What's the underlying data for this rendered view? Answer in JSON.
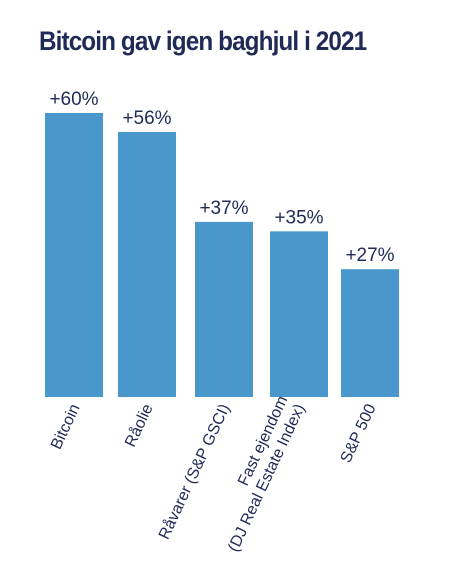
{
  "chart_data": {
    "type": "bar",
    "title": "Bitcoin gav igen baghjul i 2021",
    "categories": [
      [
        "Bitcoin"
      ],
      [
        "Råolie"
      ],
      [
        "Råvarer (S&P GSCI)"
      ],
      [
        "Fast ejendom",
        "(DJ Real Estate Index)"
      ],
      [
        "S&P 500"
      ]
    ],
    "values": [
      60,
      56,
      37,
      35,
      27
    ],
    "value_labels": [
      "+60%",
      "+56%",
      "+37%",
      "+35%",
      "+27%"
    ],
    "unit": "%",
    "ylim": [
      0,
      60
    ],
    "grid": false,
    "legend": "none",
    "bar_color": "#4a97cc",
    "text_color": "#1f2a56"
  }
}
